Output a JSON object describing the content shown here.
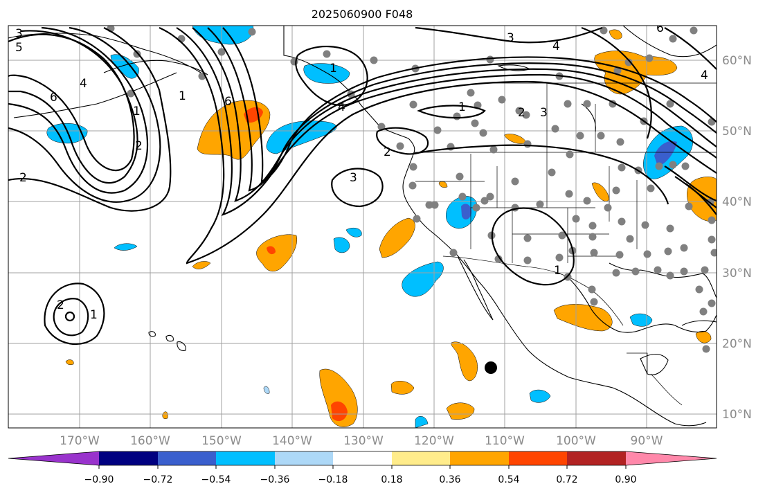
{
  "title": "2025060900 F048",
  "map": {
    "lon_labels": [
      "170°W",
      "160°W",
      "150°W",
      "140°W",
      "130°W",
      "120°W",
      "110°W",
      "100°W",
      "90°W"
    ],
    "lat_labels": [
      "60°N",
      "50°N",
      "40°N",
      "30°N",
      "20°N",
      "10°N"
    ],
    "contour_labels": [
      "3",
      "5",
      "4",
      "6",
      "1",
      "2",
      "1",
      "6",
      "3",
      "4",
      "1",
      "2",
      "3",
      "4",
      "6",
      "4",
      "1",
      "3",
      "2",
      "2",
      "1",
      "2",
      "1"
    ],
    "colors": {
      "purple": "#9933cc",
      "navy": "#000080",
      "blue": "#3a5fcd",
      "deepskyblue": "#00bfff",
      "lightblue": "#add8f7",
      "white": "#ffffff",
      "lightyellow": "#ffec8b",
      "orange": "#ffa500",
      "orangered": "#ff4500",
      "firebrick": "#b22222",
      "pink": "#ff88aa",
      "station": "#808080"
    }
  },
  "colorbar": {
    "ticks": [
      "−0.90",
      "−0.72",
      "−0.54",
      "−0.36",
      "−0.18",
      "0.18",
      "0.36",
      "0.54",
      "0.72",
      "0.90"
    ]
  }
}
